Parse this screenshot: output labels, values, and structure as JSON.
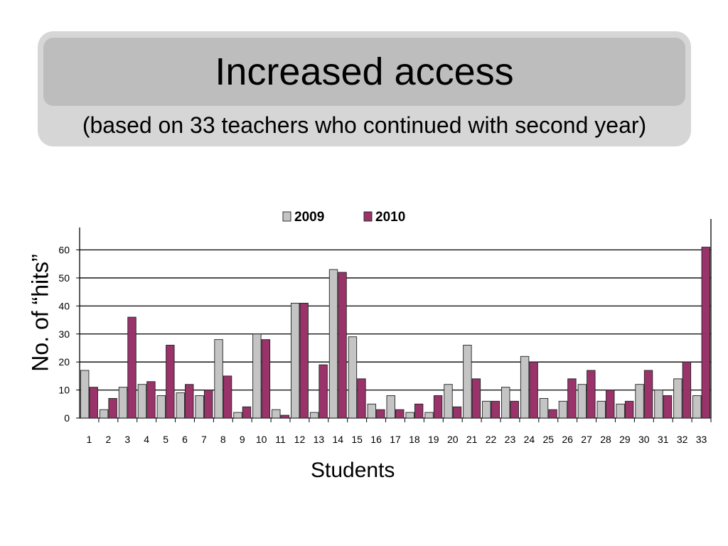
{
  "slide": {
    "title": "Increased access",
    "subtitle": "(based on 33 teachers who continued with second year)"
  },
  "colors": {
    "series_2009": "#c4c4c4",
    "series_2010": "#99336a",
    "panel_outer": "#d6d6d6",
    "panel_band": "#bdbdbd"
  },
  "chart_data": {
    "type": "bar",
    "title": "",
    "xlabel": "Students",
    "ylabel": "No. of “hits”",
    "ylim": [
      0,
      68
    ],
    "yticks": [
      0,
      10,
      20,
      30,
      40,
      50,
      60
    ],
    "grid": true,
    "legend": "top-center",
    "categories": [
      "1",
      "2",
      "3",
      "4",
      "5",
      "6",
      "7",
      "8",
      "9",
      "10",
      "11",
      "12",
      "13",
      "14",
      "15",
      "16",
      "17",
      "18",
      "19",
      "20",
      "21",
      "22",
      "23",
      "24",
      "25",
      "26",
      "27",
      "28",
      "29",
      "30",
      "31",
      "32",
      "33"
    ],
    "series": [
      {
        "name": "2009",
        "values": [
          17,
          3,
          11,
          12,
          8,
          9,
          8,
          28,
          2,
          30,
          3,
          41,
          2,
          53,
          29,
          5,
          8,
          2,
          2,
          12,
          26,
          6,
          11,
          22,
          7,
          6,
          12,
          6,
          5,
          12,
          10,
          14,
          8
        ]
      },
      {
        "name": "2010",
        "values": [
          11,
          7,
          36,
          13,
          26,
          12,
          10,
          15,
          4,
          28,
          1,
          41,
          19,
          52,
          14,
          3,
          3,
          5,
          8,
          4,
          14,
          6,
          6,
          20,
          3,
          14,
          17,
          10,
          6,
          17,
          8,
          20,
          61
        ]
      }
    ]
  }
}
